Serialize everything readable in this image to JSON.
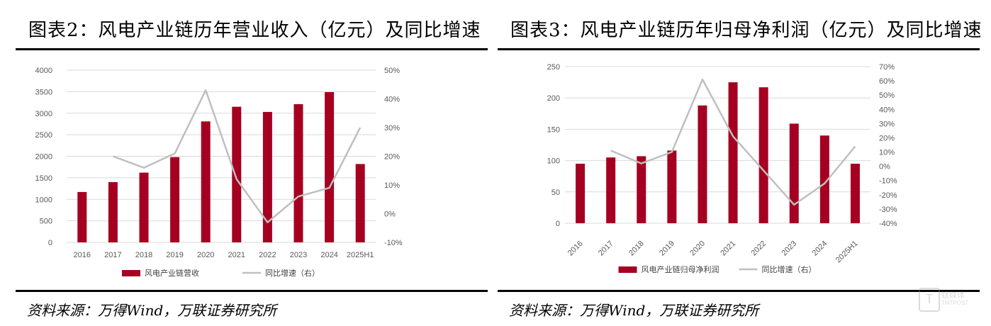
{
  "panels": [
    {
      "title": "图表2：风电产业链历年营业收入（亿元）及同比增速",
      "source": "资料来源：万得Wind，万联证券研究所"
    },
    {
      "title": "图表3：风电产业链历年归母净利润（亿元）及同比增速",
      "source": "资料来源：万得Wind，万联证券研究所"
    }
  ],
  "watermark": {
    "text": "钛媒体",
    "sub": "TMTPOST",
    "glyph": "T"
  },
  "colors": {
    "bar": "#A50021",
    "line": "#BFBFBF",
    "grid": "#D9D9D9"
  },
  "chart_data": [
    {
      "type": "bar",
      "categories": [
        "2016",
        "2017",
        "2018",
        "2019",
        "2020",
        "2021",
        "2022",
        "2023",
        "2024",
        "2025H1"
      ],
      "series": [
        {
          "name": "风电产业链营收",
          "kind": "bar",
          "axis": "left",
          "values": [
            1170,
            1400,
            1620,
            1980,
            2810,
            3150,
            3030,
            3210,
            3490,
            1820
          ]
        },
        {
          "name": "同比增速（右）",
          "kind": "line",
          "axis": "right",
          "values": [
            null,
            20,
            16,
            21,
            43,
            12,
            -3,
            6,
            9,
            30
          ]
        }
      ],
      "ylim": [
        0,
        4000
      ],
      "yticks": [
        0,
        500,
        1000,
        1500,
        2000,
        2500,
        3000,
        3500,
        4000
      ],
      "y2lim": [
        -10,
        50
      ],
      "y2ticks": [
        "-10%",
        "0%",
        "10%",
        "20%",
        "30%",
        "40%",
        "50%"
      ],
      "y2tickvalues": [
        -10,
        0,
        10,
        20,
        30,
        40,
        50
      ],
      "xlabel_rotated": false,
      "grid": true,
      "legend": "bottom"
    },
    {
      "type": "bar",
      "categories": [
        "2016",
        "2017",
        "2018",
        "2019",
        "2020",
        "2021",
        "2022",
        "2023",
        "2024",
        "2025H1"
      ],
      "series": [
        {
          "name": "风电产业链归母净利润",
          "kind": "bar",
          "axis": "left",
          "values": [
            95,
            105,
            107,
            116,
            188,
            225,
            217,
            159,
            140,
            95
          ]
        },
        {
          "name": "同比增速（右）",
          "kind": "line",
          "axis": "right",
          "values": [
            null,
            11,
            2,
            10,
            61,
            21,
            -3,
            -27,
            -12,
            14
          ]
        }
      ],
      "ylim": [
        0,
        250
      ],
      "yticks": [
        0,
        50,
        100,
        150,
        200,
        250
      ],
      "y2lim": [
        -40,
        70
      ],
      "y2ticks": [
        "-40%",
        "-30%",
        "-20%",
        "-10%",
        "0%",
        "10%",
        "20%",
        "30%",
        "40%",
        "50%",
        "60%",
        "70%"
      ],
      "y2tickvalues": [
        -40,
        -30,
        -20,
        -10,
        0,
        10,
        20,
        30,
        40,
        50,
        60,
        70
      ],
      "xlabel_rotated": true,
      "grid": true,
      "legend": "bottom"
    }
  ]
}
